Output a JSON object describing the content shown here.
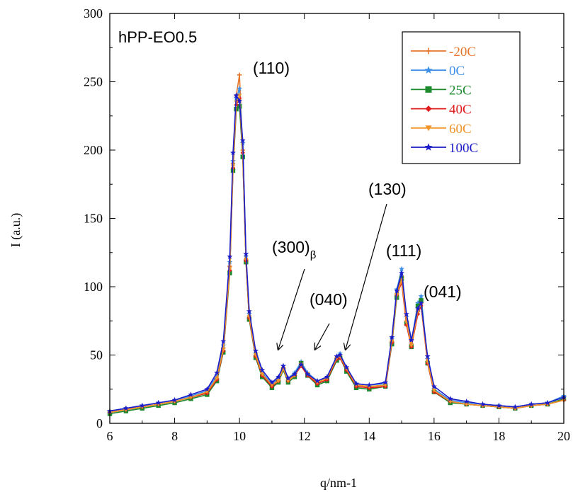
{
  "chart_data": {
    "type": "line",
    "title": "hPP-EO0.5",
    "xlabel": "q/nm-1",
    "ylabel": "I (a.u.)",
    "xlim": [
      6,
      20
    ],
    "ylim": [
      0,
      300
    ],
    "xticks": [
      6,
      8,
      10,
      12,
      14,
      16,
      18,
      20
    ],
    "yticks": [
      0,
      50,
      100,
      150,
      200,
      250,
      300
    ],
    "grid": false,
    "legend_position": "top-right",
    "x": [
      6.0,
      6.5,
      7.0,
      7.5,
      8.0,
      8.5,
      9.0,
      9.3,
      9.5,
      9.7,
      9.8,
      9.9,
      10.0,
      10.1,
      10.2,
      10.3,
      10.5,
      10.7,
      11.0,
      11.2,
      11.35,
      11.5,
      11.7,
      11.9,
      12.1,
      12.4,
      12.7,
      13.0,
      13.1,
      13.3,
      13.6,
      14.0,
      14.5,
      14.7,
      14.85,
      15.0,
      15.15,
      15.3,
      15.5,
      15.6,
      15.8,
      16.0,
      16.5,
      17.0,
      17.5,
      18.0,
      18.5,
      19.0,
      19.5,
      20.0
    ],
    "series": [
      {
        "name": "-20C",
        "color": "#e8772e",
        "marker": "plus",
        "values": [
          8,
          10,
          12,
          14,
          16,
          19,
          23,
          33,
          55,
          115,
          190,
          240,
          255,
          200,
          120,
          78,
          50,
          36,
          28,
          32,
          41,
          32,
          36,
          43,
          36,
          30,
          33,
          48,
          49,
          40,
          28,
          27,
          28,
          60,
          95,
          108,
          75,
          58,
          82,
          88,
          45,
          24,
          16,
          14,
          13,
          12,
          11,
          13,
          14,
          17
        ]
      },
      {
        "name": "0C",
        "color": "#3d8fe8",
        "marker": "star",
        "values": [
          9,
          11,
          13,
          15,
          17,
          20,
          24,
          35,
          57,
          118,
          192,
          238,
          245,
          205,
          122,
          80,
          51,
          37,
          29,
          33,
          42,
          33,
          37,
          45,
          37,
          31,
          34,
          49,
          51,
          41,
          29,
          28,
          29,
          62,
          98,
          113,
          78,
          60,
          88,
          93,
          47,
          25,
          17,
          15,
          14,
          13,
          12,
          14,
          15,
          20
        ]
      },
      {
        "name": "25C",
        "color": "#1d8a2e",
        "marker": "square",
        "values": [
          7,
          9,
          11,
          13,
          15,
          18,
          21,
          31,
          52,
          110,
          185,
          230,
          232,
          195,
          118,
          76,
          48,
          34,
          26,
          30,
          39,
          30,
          34,
          44,
          35,
          28,
          31,
          46,
          48,
          38,
          26,
          25,
          27,
          58,
          92,
          106,
          73,
          56,
          86,
          90,
          44,
          23,
          15,
          14,
          13,
          12,
          11,
          13,
          14,
          18
        ]
      },
      {
        "name": "40C",
        "color": "#e01b1b",
        "marker": "diamond",
        "values": [
          8,
          10,
          12,
          14,
          16,
          19,
          22,
          32,
          53,
          112,
          187,
          233,
          238,
          198,
          119,
          77,
          49,
          35,
          27,
          31,
          40,
          31,
          35,
          42,
          35,
          29,
          32,
          47,
          48,
          39,
          27,
          26,
          27,
          59,
          94,
          103,
          72,
          56,
          80,
          86,
          44,
          23,
          16,
          14,
          13,
          12,
          11,
          13,
          14,
          17
        ]
      },
      {
        "name": "60C",
        "color": "#f0952a",
        "marker": "triangle-down",
        "values": [
          8,
          10,
          12,
          14,
          16,
          19,
          23,
          33,
          54,
          113,
          188,
          235,
          240,
          199,
          120,
          78,
          50,
          36,
          28,
          31,
          40,
          31,
          35,
          43,
          36,
          30,
          33,
          48,
          49,
          40,
          28,
          27,
          28,
          60,
          94,
          105,
          74,
          57,
          82,
          87,
          45,
          24,
          16,
          14,
          13,
          12,
          11,
          13,
          14,
          17
        ]
      },
      {
        "name": "100C",
        "color": "#1c1cc8",
        "marker": "star",
        "values": [
          9,
          11,
          13,
          15,
          17,
          21,
          25,
          37,
          60,
          122,
          198,
          240,
          236,
          207,
          124,
          82,
          53,
          39,
          30,
          34,
          42,
          33,
          36,
          43,
          36,
          31,
          34,
          49,
          50,
          41,
          29,
          28,
          30,
          63,
          97,
          110,
          80,
          61,
          84,
          88,
          49,
          27,
          18,
          16,
          14,
          13,
          12,
          14,
          15,
          19
        ]
      }
    ],
    "annotations": [
      {
        "label": "(110)",
        "sub": ""
      },
      {
        "label": "(300)",
        "sub": "β"
      },
      {
        "label": "(040)",
        "sub": ""
      },
      {
        "label": "(130)",
        "sub": ""
      },
      {
        "label": "(111)",
        "sub": ""
      },
      {
        "label": "(041)",
        "sub": ""
      }
    ]
  }
}
